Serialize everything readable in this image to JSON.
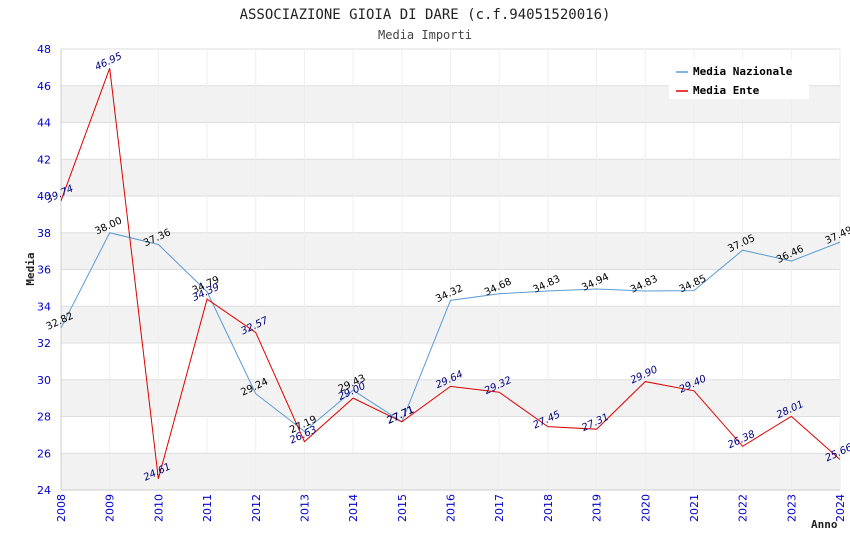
{
  "chart_data": {
    "type": "line",
    "title": "ASSOCIAZIONE GIOIA DI DARE (c.f.94051520016)",
    "subtitle": "Media Importi",
    "xlabel": "Anno",
    "ylabel": "Media",
    "ylim": [
      24,
      48
    ],
    "yticks": [
      24,
      26,
      28,
      30,
      32,
      34,
      36,
      38,
      40,
      42,
      44,
      46,
      48
    ],
    "x": [
      "2008",
      "2009",
      "2010",
      "2011",
      "2012",
      "2013",
      "2014",
      "2015",
      "2016",
      "2017",
      "2018",
      "2019",
      "2020",
      "2021",
      "2022",
      "2023",
      "2024"
    ],
    "series": [
      {
        "name": "Media Nazionale",
        "color": "#5b9bd5",
        "label_color": "#000000",
        "values": [
          32.82,
          38.0,
          37.36,
          34.79,
          29.24,
          27.19,
          29.43,
          27.71,
          34.32,
          34.68,
          34.83,
          34.94,
          34.83,
          34.85,
          37.05,
          36.46,
          37.49
        ],
        "labels": [
          "32.82",
          "38.00",
          "37.36",
          "34.79",
          "29.24",
          "27.19",
          "29.43",
          "27.71",
          "34.32",
          "34.68",
          "34.83",
          "34.94",
          "34.83",
          "34.85",
          "37.05",
          "36.46",
          "37.49"
        ]
      },
      {
        "name": "Media Ente",
        "color": "#dd0000",
        "label_color": "#000080",
        "values": [
          39.74,
          46.95,
          24.61,
          34.39,
          32.57,
          26.63,
          29.0,
          27.71,
          29.64,
          29.32,
          27.45,
          27.31,
          29.9,
          29.4,
          26.38,
          28.01,
          25.66
        ],
        "labels": [
          "39.74",
          "46.95",
          "24.61",
          "34.39",
          "32.57",
          "26.63",
          "29.00",
          "27.71",
          "29.64",
          "29.32",
          "27.45",
          "27.31",
          "29.90",
          "29.40",
          "26.38",
          "28.01",
          "25.66"
        ]
      }
    ],
    "legend_position": "top-right",
    "grid": true
  }
}
